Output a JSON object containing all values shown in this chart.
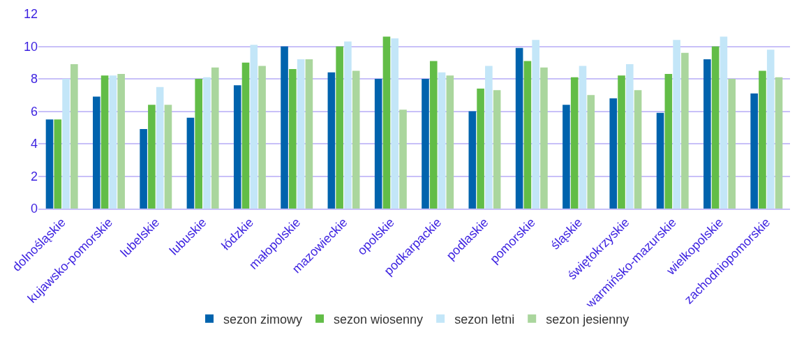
{
  "chart_data": {
    "type": "bar",
    "categories": [
      "dolnośląskie",
      "kujawsko-pomorskie",
      "lubelskie",
      "lubuskie",
      "łódzkie",
      "małopolskie",
      "mazowieckie",
      "opolskie",
      "podkarpackie",
      "podlaskie",
      "pomorskie",
      "śląskie",
      "świętokrzyskie",
      "warmińsko-mazurskie",
      "wielkopolskie",
      "zachodniopomorskie"
    ],
    "series": [
      {
        "name": "sezon zimowy",
        "color": "#0063ad",
        "values": [
          5.5,
          6.9,
          4.9,
          5.6,
          7.6,
          10.0,
          8.4,
          8.0,
          8.0,
          6.0,
          9.9,
          6.4,
          6.8,
          5.9,
          9.2,
          7.1
        ]
      },
      {
        "name": "sezon wiosenny",
        "color": "#62bd47",
        "values": [
          5.5,
          8.2,
          6.4,
          8.0,
          9.0,
          8.6,
          10.0,
          10.6,
          9.1,
          7.4,
          9.1,
          8.1,
          8.2,
          8.3,
          10.0,
          8.5
        ]
      },
      {
        "name": "sezon letni",
        "color": "#c3e6f8",
        "values": [
          8.0,
          8.2,
          7.5,
          8.1,
          10.1,
          9.2,
          10.3,
          10.5,
          8.4,
          8.8,
          10.4,
          8.8,
          8.9,
          10.4,
          10.6,
          9.8
        ]
      },
      {
        "name": "sezon jesienny",
        "color": "#aad69d",
        "values": [
          8.9,
          8.3,
          6.4,
          8.7,
          8.8,
          9.2,
          8.5,
          6.1,
          8.2,
          7.3,
          8.7,
          7.0,
          7.3,
          9.6,
          8.0,
          8.1
        ]
      }
    ],
    "ylim": [
      0,
      12
    ],
    "yticks": [
      0,
      2,
      4,
      6,
      8,
      10,
      12
    ],
    "grid": "y",
    "legend": "bottom"
  }
}
